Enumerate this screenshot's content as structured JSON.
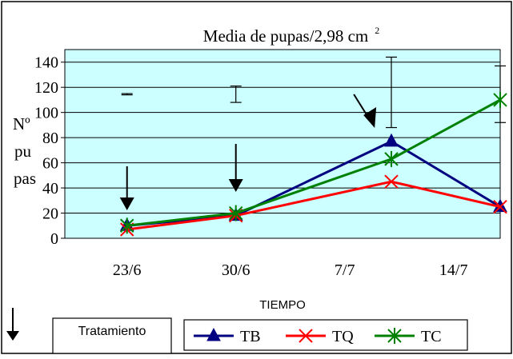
{
  "chart_data": {
    "type": "line",
    "title": "Media de pupas/2,98 cm",
    "title_superscript": "2",
    "xlabel": "TIEMPO",
    "ylabel_lines": [
      "Nº",
      "pu",
      "pas"
    ],
    "x_tick_labels": [
      "23/6",
      "30/6",
      "7/7",
      "14/7"
    ],
    "x_tick_days": [
      0,
      7,
      14,
      21
    ],
    "xlim": [
      -4,
      24
    ],
    "ylim": [
      0,
      150
    ],
    "y_ticks": [
      0,
      20,
      40,
      60,
      80,
      100,
      120,
      140
    ],
    "grid": true,
    "plot_background": "#ccffff",
    "series": [
      {
        "name": "TB",
        "color": "#000080",
        "marker": "triangle",
        "x": [
          0,
          7,
          17,
          24
        ],
        "y": [
          10,
          18,
          77,
          25
        ]
      },
      {
        "name": "TQ",
        "color": "#ff0000",
        "marker": "x",
        "x": [
          0,
          7,
          17,
          24
        ],
        "y": [
          7,
          18,
          45,
          25
        ]
      },
      {
        "name": "TC",
        "color": "#008000",
        "marker": "asterisk",
        "x": [
          0,
          7,
          17,
          24
        ],
        "y": [
          10,
          20,
          63,
          110
        ]
      }
    ],
    "error_bars": [
      {
        "x": 0,
        "low": 114,
        "high": 115
      },
      {
        "x": 7,
        "low": 108,
        "high": 121
      },
      {
        "x": 17,
        "low": 88,
        "high": 144
      },
      {
        "x": 24,
        "low": 92,
        "high": 137
      }
    ],
    "treatment_arrows_x": [
      0,
      7,
      15
    ],
    "legend_position": "bottom",
    "legend_title": "Tratamiento"
  }
}
